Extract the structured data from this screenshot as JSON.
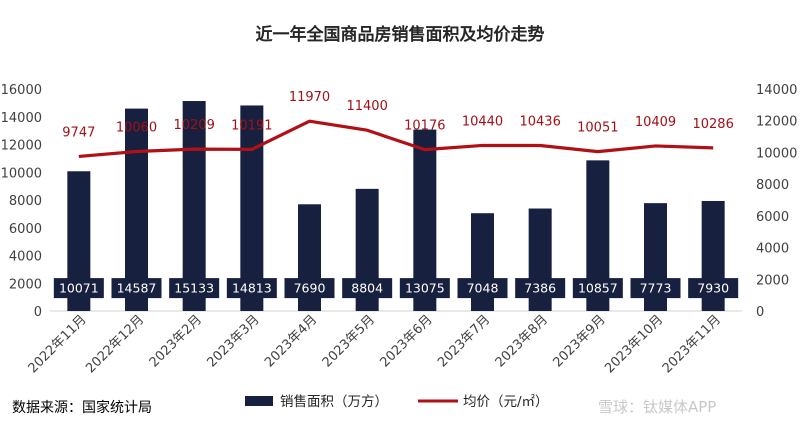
{
  "chart_data": {
    "type": "bar",
    "title": "近一年全国商品房销售面积及均价走势",
    "categories": [
      "2022年11月",
      "2022年12月",
      "2023年2月",
      "2023年3月",
      "2023年4月",
      "2023年5月",
      "2023年6月",
      "2023年7月",
      "2023年8月",
      "2023年9月",
      "2023年10月",
      "2023年11月"
    ],
    "series": [
      {
        "name": "销售面积（万方）",
        "type": "bar",
        "axis": "left",
        "color": "#17203f",
        "values": [
          10071,
          14587,
          15133,
          14813,
          7690,
          8804,
          13075,
          7048,
          7386,
          10857,
          7773,
          7930
        ]
      },
      {
        "name": "均价（元/㎡）",
        "type": "line",
        "axis": "right",
        "color": "#b01016",
        "values": [
          9747,
          10060,
          10209,
          10191,
          11970,
          11400,
          10176,
          10440,
          10436,
          10051,
          10409,
          10286
        ]
      }
    ],
    "ylim_left": [
      0,
      16000
    ],
    "ylim_right": [
      0,
      14000
    ],
    "yticks_left": [
      "0",
      "2000",
      "4000",
      "6000",
      "8000",
      "10000",
      "12000",
      "14000",
      "16000"
    ],
    "yticks_right": [
      "0",
      "2000",
      "4000",
      "6000",
      "8000",
      "10000",
      "12000",
      "14000"
    ],
    "grid": false,
    "legend": "bottom"
  },
  "source_note": "数据来源：国家统计局",
  "watermark": "雪球：钛媒体APP"
}
